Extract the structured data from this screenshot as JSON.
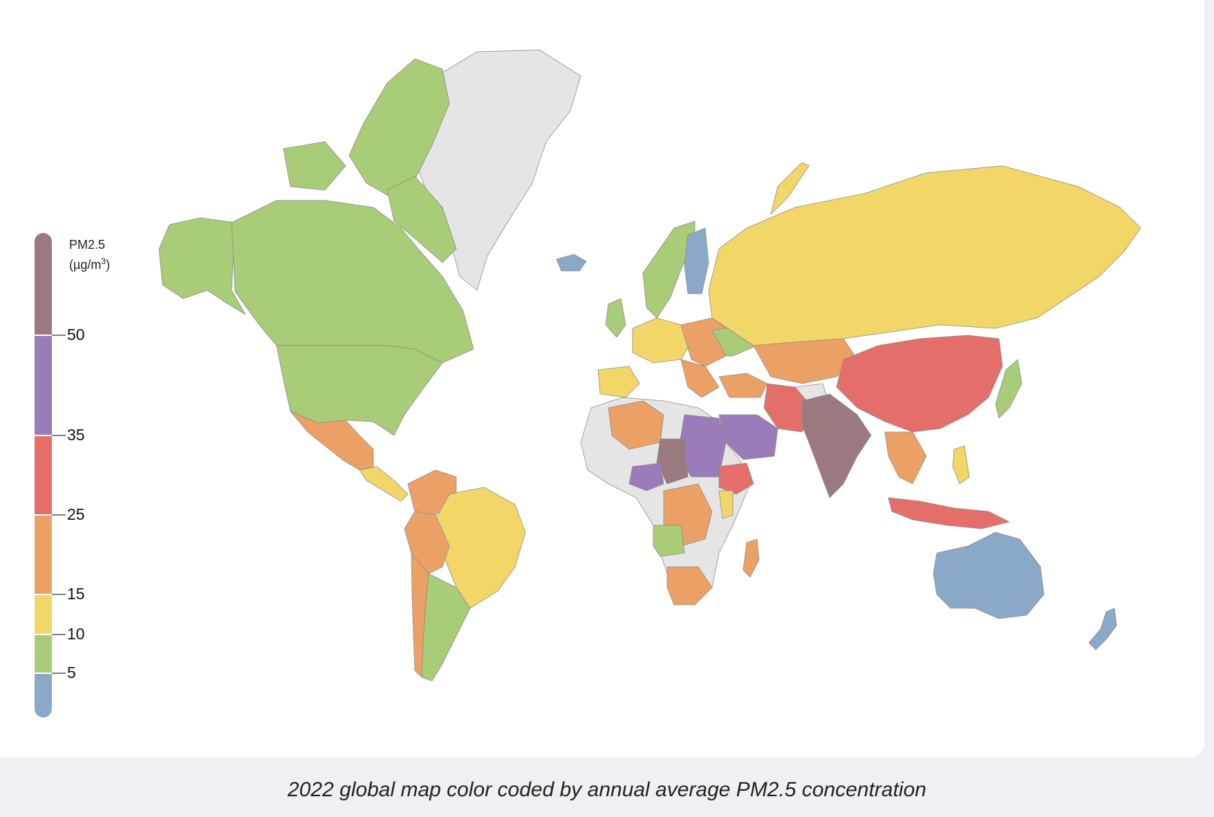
{
  "caption": "2022 global map color coded by annual average PM2.5 concentration",
  "legend": {
    "title": "PM2.5",
    "unit_prefix": "(µg/m",
    "unit_sup": "3",
    "unit_suffix": ")",
    "bins": [
      {
        "min": 0,
        "max": 5,
        "color": "#8aa8c8"
      },
      {
        "min": 5,
        "max": 10,
        "color": "#a8cc77"
      },
      {
        "min": 10,
        "max": 15,
        "color": "#f3d668"
      },
      {
        "min": 15,
        "max": 25,
        "color": "#eba166"
      },
      {
        "min": 25,
        "max": 35,
        "color": "#e46f6a"
      },
      {
        "min": 35,
        "max": 50,
        "color": "#9b7cba"
      },
      {
        "min": 50,
        "max": null,
        "color": "#9a7a7e"
      }
    ],
    "ticks": [
      "5",
      "10",
      "15",
      "25",
      "35",
      "50"
    ]
  },
  "colors": {
    "no_data": "#e5e5e5",
    "ocean": "#ffffff",
    "border": "#7a7a7a"
  }
}
